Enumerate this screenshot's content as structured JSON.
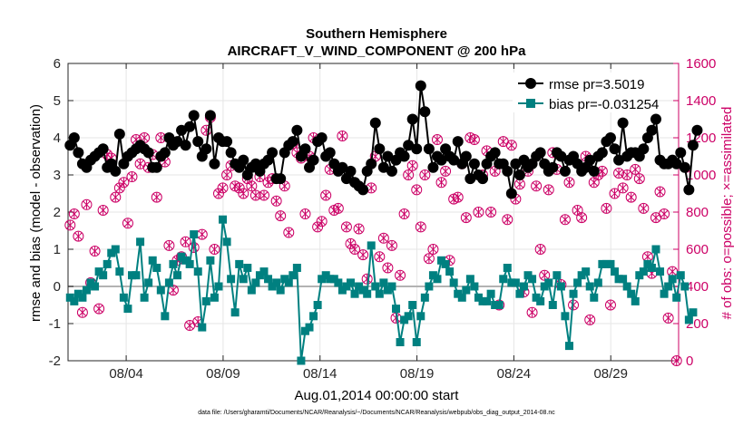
{
  "chart_data": {
    "type": "line",
    "title": "Southern Hemisphere",
    "subtitle": "AIRCRAFT_V_WIND_COMPONENT @ 200 hPa",
    "xlabel": "Aug.01,2014 00:00:00 start",
    "ylabel": "rmse and bias (model - observation)",
    "y2label": "# of obs: o=possible; ×=assimilated",
    "footer": "data file: /Users/gharamti/Documents/NCAR/Reanalysis/~/Documents/NCAR/Reanalysis/webpub/obs_diag_output_2014-08.nc",
    "xlim": [
      0,
      31.5
    ],
    "ylim": [
      -2,
      6
    ],
    "y2lim": [
      0,
      1600
    ],
    "xticks": [
      3,
      8,
      13,
      18,
      23,
      28
    ],
    "xticklabels": [
      "08/04",
      "08/09",
      "08/14",
      "08/19",
      "08/24",
      "08/29"
    ],
    "yticks": [
      -2,
      -1,
      0,
      1,
      2,
      3,
      4,
      5,
      6
    ],
    "y2ticks": [
      0,
      200,
      400,
      600,
      800,
      1000,
      1200,
      1400,
      1600
    ],
    "legend_position": "top-right",
    "colors": {
      "rmse": "#000000",
      "bias": "#008080",
      "obs": "#cc0066",
      "zero": "#b3b3b3"
    },
    "series": [
      {
        "name": "rmse pr=3.5019",
        "axis": "left",
        "values": [
          3.8,
          4.0,
          3.6,
          3.3,
          3.2,
          3.4,
          3.5,
          3.6,
          3.7,
          3.2,
          3.3,
          3.1,
          4.1,
          3.3,
          3.5,
          3.6,
          3.7,
          3.8,
          3.7,
          3.6,
          3.2,
          3.2,
          3.5,
          3.6,
          4.0,
          3.8,
          3.9,
          4.2,
          3.8,
          4.3,
          4.6,
          3.9,
          3.5,
          3.7,
          4.6,
          3.3,
          4.0,
          3.9,
          3.9,
          3.6,
          3.3,
          3.2,
          3.4,
          3.0,
          3.2,
          3.3,
          3.1,
          3.3,
          3.4,
          3.6,
          2.9,
          2.9,
          3.6,
          3.8,
          3.9,
          4.2,
          3.5,
          3.7,
          3.2,
          3.4,
          3.9,
          4.0,
          3.5,
          3.6,
          3.3,
          3.1,
          3.2,
          2.9,
          3.1,
          2.8,
          2.7,
          2.6,
          3.1,
          3.3,
          4.4,
          3.7,
          3.2,
          3.5,
          3.1,
          3.4,
          3.6,
          3.5,
          3.8,
          4.5,
          3.7,
          5.4,
          4.7,
          3.7,
          3.2,
          3.5,
          3.4,
          3.7,
          3.5,
          3.4,
          3.9,
          3.3,
          3.5,
          2.9,
          3.3,
          3.0,
          2.9,
          3.3,
          3.5,
          3.6,
          3.3,
          3.3,
          3.1,
          2.5,
          3.3,
          3.0,
          3.4,
          3.2,
          3.3,
          3.5,
          3.6,
          3.3,
          3.1,
          3.2,
          3.6,
          3.5,
          3.1,
          3.4,
          3.5,
          3.3,
          3.1,
          3.2,
          3.4,
          3.1,
          3.5,
          3.6,
          3.9,
          4.0,
          3.7,
          3.4,
          4.4,
          3.5,
          3.6,
          3.6,
          3.5,
          3.7,
          4.0,
          4.2,
          4.5,
          3.4,
          3.3,
          3.3,
          3.4,
          3.3,
          3.6,
          3.2,
          2.6,
          3.8,
          4.2
        ]
      },
      {
        "name": "bias pr=-0.031254",
        "axis": "left",
        "values": [
          -0.3,
          -0.4,
          -0.2,
          -0.3,
          -0.1,
          0.1,
          0.0,
          0.4,
          0.3,
          0.6,
          0.9,
          1.0,
          0.4,
          -0.3,
          -0.6,
          0.3,
          0.3,
          1.2,
          -0.3,
          0.1,
          0.7,
          0.5,
          -0.1,
          -0.8,
          0.1,
          0.6,
          0.3,
          0.8,
          0.7,
          0.6,
          1.4,
          0.4,
          -1.1,
          -0.4,
          0.7,
          -0.3,
          0.0,
          1.8,
          1.2,
          0.2,
          -0.7,
          0.6,
          0.2,
          0.5,
          -0.1,
          0.1,
          0.3,
          0.4,
          0.2,
          0.0,
          0.1,
          -0.1,
          0.2,
          0.1,
          0.3,
          0.5,
          -2.0,
          -1.2,
          -1.1,
          -0.8,
          -0.5,
          0.2,
          0.3,
          0.2,
          0.2,
          0.1,
          -0.1,
          0.0,
          0.1,
          -0.2,
          0.0,
          -0.1,
          -0.2,
          1.1,
          0.0,
          -0.2,
          0.1,
          -0.1,
          0.0,
          -0.6,
          -1.5,
          -0.9,
          -0.8,
          -0.5,
          -1.5,
          -0.8,
          -0.3,
          0.0,
          0.3,
          0.2,
          0.7,
          0.6,
          0.4,
          0.1,
          -0.2,
          -0.3,
          -0.1,
          0.2,
          0.0,
          -0.3,
          -0.4,
          -0.4,
          -0.2,
          -0.5,
          -0.5,
          0.2,
          0.5,
          0.1,
          0.1,
          -0.2,
          0.0,
          0.3,
          0.2,
          -0.3,
          -0.4,
          0.0,
          0.1,
          -0.5,
          0.3,
          0.0,
          -0.8,
          -1.6,
          -0.2,
          0.1,
          0.3,
          0.4,
          0.0,
          -0.3,
          0.1,
          0.6,
          0.6,
          0.6,
          0.4,
          0.2,
          0.2,
          0.0,
          -0.2,
          -0.4,
          0.3,
          0.4,
          0.6,
          0.5,
          1.0,
          0.4,
          -0.2,
          0.0,
          0.2,
          -0.3,
          0.3,
          0.0,
          -0.9,
          -0.7
        ]
      },
      {
        "name": "obs_possible",
        "axis": "right",
        "values": [
          730,
          790,
          670,
          260,
          840,
          420,
          590,
          280,
          810,
          1110,
          1090,
          880,
          930,
          960,
          740,
          990,
          1190,
          1060,
          1200,
          1040,
          1110,
          880,
          1200,
          1070,
          620,
          380,
          540,
          560,
          640,
          190,
          610,
          210,
          680,
          1240,
          1310,
          600,
          900,
          930,
          1000,
          1050,
          940,
          930,
          900,
          980,
          940,
          890,
          990,
          890,
          960,
          980,
          860,
          780,
          940,
          690,
          1170,
          1120,
          1090,
          790,
          1100,
          1200,
          720,
          750,
          890,
          1030,
          810,
          820,
          1210,
          720,
          630,
          600,
          710,
          570,
          440,
          930,
          1100,
          560,
          660,
          500,
          620,
          230,
          460,
          790,
          1000,
          1050,
          920,
          720,
          1000,
          550,
          600,
          1190,
          960,
          1020,
          540,
          870,
          880,
          1060,
          770,
          1200,
          1190,
          800,
          1000,
          1130,
          800,
          1020,
          300,
          1180,
          760,
          1160,
          870,
          950,
          370,
          1020,
          260,
          940,
          600,
          460,
          920,
          1120,
          1030,
          410,
          760,
          960,
          300,
          810,
          770,
          1100,
          220,
          960,
          1000,
          1020,
          820,
          300,
          900,
          1010,
          930,
          1000,
          880,
          1030,
          980,
          820,
          560,
          470,
          770,
          910,
          790,
          230,
          480,
          0
        ]
      },
      {
        "name": "obs_assimilated",
        "axis": "right",
        "values": [
          730,
          790,
          670,
          260,
          840,
          420,
          590,
          280,
          810,
          1110,
          1090,
          880,
          930,
          960,
          740,
          990,
          1190,
          1060,
          1200,
          1040,
          1110,
          880,
          1200,
          1070,
          620,
          380,
          540,
          560,
          640,
          190,
          610,
          210,
          680,
          1240,
          1310,
          600,
          900,
          930,
          1000,
          1050,
          940,
          930,
          900,
          980,
          940,
          890,
          990,
          890,
          960,
          980,
          860,
          780,
          940,
          690,
          1170,
          1120,
          1090,
          790,
          1100,
          1200,
          720,
          750,
          890,
          1030,
          810,
          820,
          1210,
          720,
          630,
          600,
          710,
          570,
          440,
          930,
          1100,
          560,
          660,
          500,
          620,
          230,
          460,
          790,
          1000,
          1050,
          920,
          720,
          1000,
          550,
          600,
          1190,
          960,
          1020,
          540,
          870,
          880,
          1060,
          770,
          1200,
          1190,
          800,
          1000,
          1130,
          800,
          1020,
          300,
          1180,
          760,
          1160,
          870,
          950,
          370,
          1020,
          260,
          940,
          600,
          460,
          920,
          1120,
          1030,
          410,
          760,
          960,
          300,
          810,
          770,
          1100,
          220,
          960,
          1000,
          1020,
          820,
          300,
          900,
          1010,
          930,
          1000,
          880,
          1030,
          980,
          820,
          560,
          470,
          770,
          910,
          790,
          230,
          480,
          0
        ]
      }
    ]
  }
}
